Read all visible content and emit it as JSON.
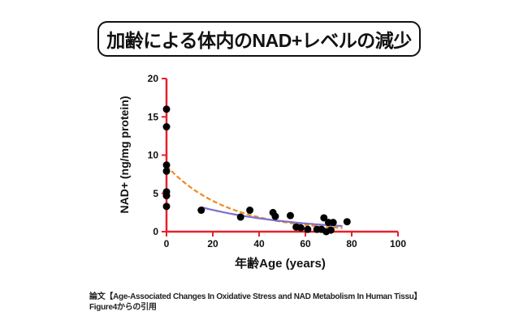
{
  "chart_data": {
    "type": "scatter",
    "title": "加齢による体内のNAD+レベルの減少",
    "xlabel": "年齢Age (years)",
    "ylabel": "NAD+ (ng/mg protein)",
    "xlim": [
      0,
      100
    ],
    "ylim": [
      0,
      20
    ],
    "xticks": [
      "0",
      "20",
      "40",
      "60",
      "80",
      "100"
    ],
    "yticks": [
      "0",
      "5",
      "10",
      "15",
      "20"
    ],
    "points": [
      [
        0,
        16.0
      ],
      [
        0,
        13.7
      ],
      [
        0,
        8.7
      ],
      [
        0,
        7.9
      ],
      [
        0,
        5.2
      ],
      [
        0,
        4.7
      ],
      [
        0,
        3.3
      ],
      [
        15,
        2.8
      ],
      [
        32,
        1.9
      ],
      [
        36,
        2.8
      ],
      [
        46,
        2.5
      ],
      [
        47,
        2.0
      ],
      [
        53.5,
        2.1
      ],
      [
        56,
        0.6
      ],
      [
        58,
        0.5
      ],
      [
        61,
        0.3
      ],
      [
        65,
        0.3
      ],
      [
        67,
        0.3
      ],
      [
        68,
        1.8
      ],
      [
        69,
        0.0
      ],
      [
        70,
        1.2
      ],
      [
        71,
        0.2
      ],
      [
        72,
        1.2
      ],
      [
        78,
        1.3
      ]
    ],
    "fits": [
      {
        "name": "exponential fit (dashed)",
        "color": "#f08a1c",
        "dashed": true,
        "a": 8.6,
        "k": 0.038,
        "x_range": [
          0,
          76
        ]
      },
      {
        "name": "fit (solid)",
        "color": "#7b6fd0",
        "dashed": false,
        "a": 4.6,
        "k": 0.0242,
        "x_range": [
          15,
          76
        ]
      }
    ],
    "axis_color": "#e8202a",
    "grid": false
  },
  "caption": {
    "line1": "論文【Age-Associated Changes In Oxidative Stress and NAD Metabolism In Human Tissu】",
    "line2": "Figure4からの引用"
  }
}
